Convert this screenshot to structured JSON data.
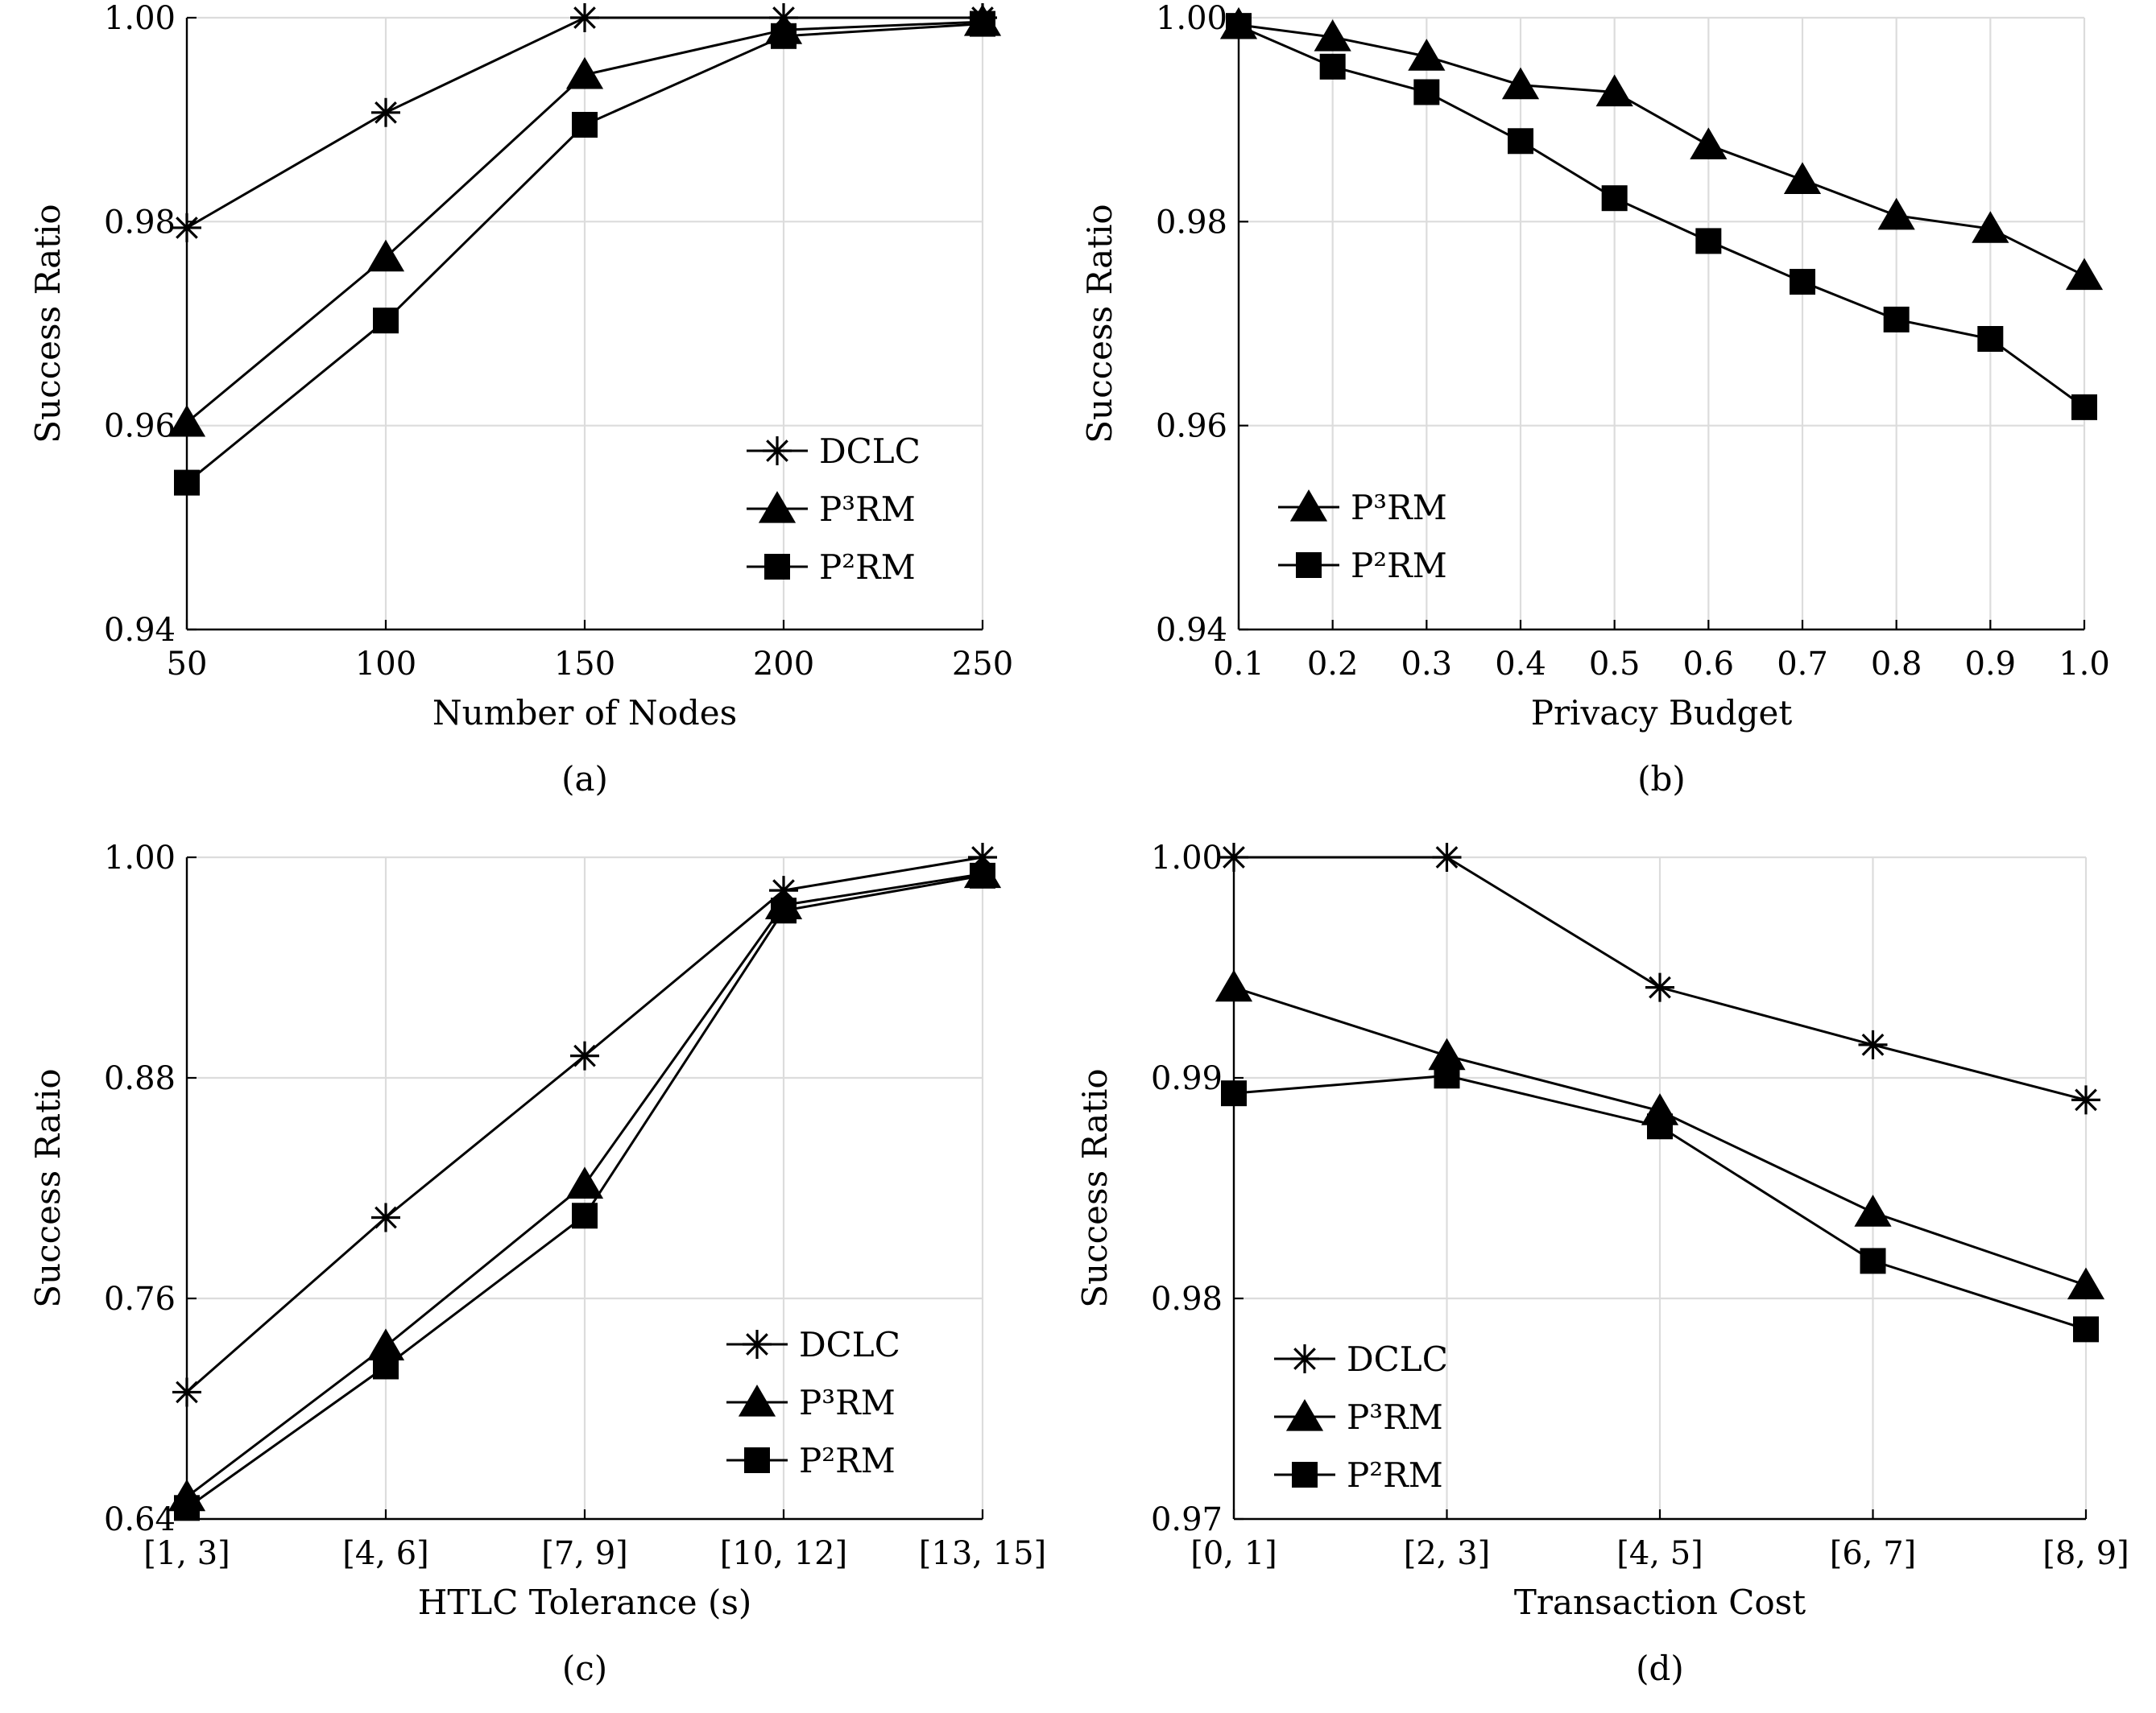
{
  "chart_data": [
    {
      "id": "a",
      "type": "line",
      "caption": "(a)",
      "xlabel": "Number of Nodes",
      "ylabel": "Success Ratio",
      "x": [
        50,
        100,
        150,
        200,
        250
      ],
      "xticks": [
        "50",
        "100",
        "150",
        "200",
        "250"
      ],
      "xlim": [
        50,
        250
      ],
      "ylim": [
        0.94,
        1.0
      ],
      "yticks": [
        0.94,
        0.96,
        0.98,
        1.0
      ],
      "ytick_labels": [
        "0.94",
        "0.96",
        "0.98",
        "1.00"
      ],
      "grid": true,
      "legend_position": "bottom-right",
      "series": [
        {
          "name": "DCLC",
          "marker": "asterisk",
          "values": [
            0.9794,
            0.9907,
            1.0,
            1.0,
            1.0
          ]
        },
        {
          "name": "P³RM",
          "marker": "triangle",
          "values": [
            0.9603,
            0.9765,
            0.9944,
            0.9988,
            0.9996
          ]
        },
        {
          "name": "P²RM",
          "marker": "square",
          "values": [
            0.9544,
            0.9703,
            0.9895,
            0.9982,
            0.9994
          ]
        }
      ]
    },
    {
      "id": "b",
      "type": "line",
      "caption": "(b)",
      "xlabel": "Privacy Budget",
      "ylabel": "Success Ratio",
      "x": [
        0.1,
        0.2,
        0.3,
        0.4,
        0.5,
        0.6,
        0.7,
        0.8,
        0.9,
        1.0
      ],
      "xticks": [
        "0.1",
        "0.2",
        "0.3",
        "0.4",
        "0.5",
        "0.6",
        "0.7",
        "0.8",
        "0.9",
        "1.0"
      ],
      "xlim": [
        0.1,
        1.0
      ],
      "ylim": [
        0.94,
        1.0
      ],
      "yticks": [
        0.94,
        0.96,
        0.98,
        1.0
      ],
      "ytick_labels": [
        "0.94",
        "0.96",
        "0.98",
        "1.00"
      ],
      "grid": true,
      "legend_position": "bottom-left",
      "series": [
        {
          "name": "P³RM",
          "marker": "triangle",
          "values": [
            0.9993,
            0.9981,
            0.9962,
            0.9934,
            0.9927,
            0.9875,
            0.9841,
            0.9806,
            0.9793,
            0.9747
          ]
        },
        {
          "name": "P²RM",
          "marker": "square",
          "values": [
            0.9992,
            0.9952,
            0.9927,
            0.9879,
            0.9823,
            0.9781,
            0.9741,
            0.9704,
            0.9685,
            0.9618
          ]
        }
      ]
    },
    {
      "id": "c",
      "type": "line",
      "caption": "(c)",
      "xlabel": "HTLC Tolerance (s)",
      "ylabel": "Success Ratio",
      "x": [
        "[1, 3]",
        "[4, 6]",
        "[7, 9]",
        "[10, 12]",
        "[13, 15]"
      ],
      "xticks": [
        "[1, 3]",
        "[4, 6]",
        "[7, 9]",
        "[10, 12]",
        "[13, 15]"
      ],
      "ylim": [
        0.64,
        1.0
      ],
      "ytick_values": [
        0.64,
        0.76,
        0.88,
        1.0
      ],
      "ytick_labels": [
        "0.64",
        "0.76",
        "0.88",
        "1.00"
      ],
      "grid": true,
      "legend_position": "bottom-right",
      "series": [
        {
          "name": "DCLC",
          "marker": "asterisk",
          "values": [
            0.709,
            0.804,
            0.892,
            0.982,
            1.0
          ]
        },
        {
          "name": "P³RM",
          "marker": "triangle",
          "values": [
            0.652,
            0.734,
            0.822,
            0.974,
            0.991
          ]
        },
        {
          "name": "P²RM",
          "marker": "square",
          "values": [
            0.646,
            0.723,
            0.805,
            0.971,
            0.99
          ]
        }
      ]
    },
    {
      "id": "d",
      "type": "line",
      "caption": "(d)",
      "xlabel": "Transaction Cost",
      "ylabel": "Success Ratio",
      "x": [
        "[0, 1]",
        "[2, 3]",
        "[4, 5]",
        "[6, 7]",
        "[8, 9]"
      ],
      "xticks": [
        "[0, 1]",
        "[2, 3]",
        "[4, 5]",
        "[6, 7]",
        "[8, 9]"
      ],
      "ylim": [
        0.97,
        1.0
      ],
      "ytick_values": [
        0.97,
        0.98,
        0.99,
        1.0
      ],
      "ytick_labels": [
        "0.97",
        "0.98",
        "0.99",
        "1.00"
      ],
      "grid": true,
      "legend_position": "bottom-left",
      "series": [
        {
          "name": "DCLC",
          "marker": "asterisk",
          "values": [
            1.0,
            1.0,
            0.9941,
            0.9915,
            0.989
          ]
        },
        {
          "name": "P³RM",
          "marker": "triangle",
          "values": [
            0.9941,
            0.991,
            0.9885,
            0.9839,
            0.9806
          ]
        },
        {
          "name": "P²RM",
          "marker": "square",
          "values": [
            0.9893,
            0.9901,
            0.9878,
            0.9817,
            0.9786
          ]
        }
      ]
    }
  ]
}
